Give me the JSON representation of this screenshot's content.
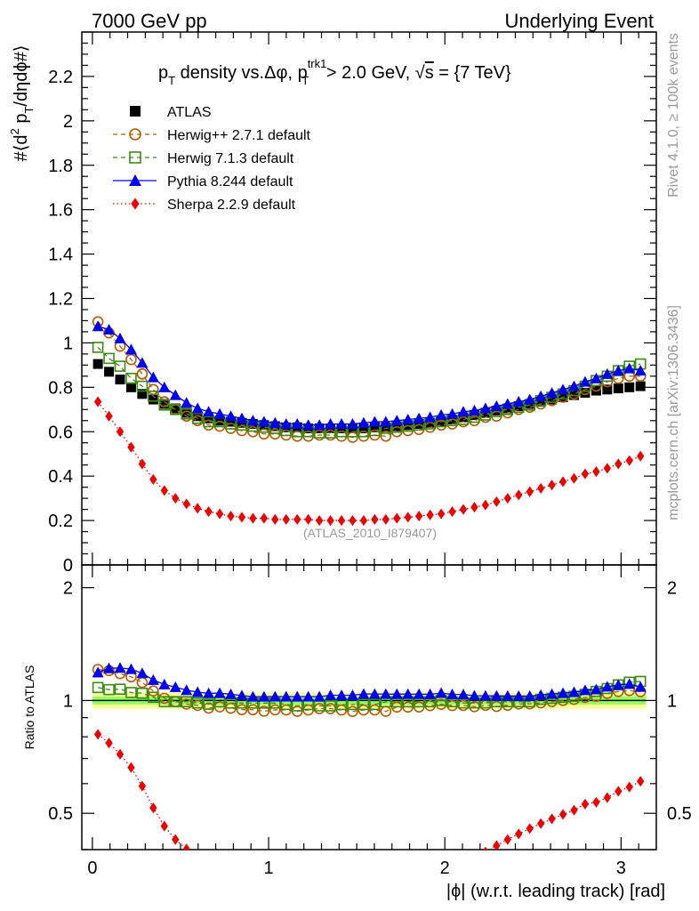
{
  "header": {
    "left": "7000 GeV pp",
    "right": "Underlying Event"
  },
  "side_labels": {
    "rivet": "Rivet 4.1.0, ≥ 100k events",
    "mcplots": "mcplots.cern.ch [arXiv:1306.3436]"
  },
  "chart_data": {
    "type": "scatter",
    "title": "pT density vs.Δφ, pT trk1 > 2.0 GeV, √s = {7 TeV}",
    "title_parts": {
      "p": "p",
      "T": "T",
      "mid": " density vs.Δφ, ",
      "p2": "p",
      "sup": "trk1",
      "sub2": "T",
      "rest": " > 2.0 GeV, ",
      "sqrt": "√",
      "s": "s",
      "end": " = {7 TeV}"
    },
    "ylabel_parts": {
      "a": "#⟨d",
      "b": "2",
      "c": " p",
      "d": "T",
      "e": "/dηdϕ#⟩"
    },
    "ratio_ylabel": "Ratio to ATLAS",
    "xlabel": "|ϕ| (w.r.t. leading track) [rad]",
    "watermark": "(ATLAS_2010_I879407)",
    "xlim": [
      -0.06,
      3.2
    ],
    "ylim": [
      0,
      2.4
    ],
    "ratio_ylim": [
      0.4,
      2.3
    ],
    "x_ticks": [
      "0",
      "1",
      "2",
      "3"
    ],
    "y_ticks": [
      "0",
      "0.2",
      "0.4",
      "0.6",
      "0.8",
      "1",
      "1.2",
      "1.4",
      "1.6",
      "1.8",
      "2",
      "2.2"
    ],
    "ratio_ticks": [
      "0.5",
      "1",
      "2"
    ],
    "legend": [
      "ATLAS",
      "Herwig++ 2.7.1 default",
      "Herwig 7.1.3 default",
      "Pythia 8.244 default",
      "Sherpa 2.2.9 default"
    ],
    "colors": {
      "atlas": "#000000",
      "herwigpp": "#b25b00",
      "herwig7": "#3a8a14",
      "pythia": "#0000ee",
      "sherpa": "#ee0000",
      "band_inner": "#99ff66",
      "band_outer": "#ffff99"
    },
    "x": [
      0.0314,
      0.0942,
      0.1571,
      0.2199,
      0.2827,
      0.3456,
      0.4084,
      0.4712,
      0.5341,
      0.5969,
      0.6597,
      0.7226,
      0.7854,
      0.8482,
      0.9111,
      0.9739,
      1.0367,
      1.0996,
      1.1624,
      1.2252,
      1.2881,
      1.3509,
      1.4137,
      1.4765,
      1.5394,
      1.6022,
      1.665,
      1.7279,
      1.7907,
      1.8535,
      1.9164,
      1.9792,
      2.042,
      2.1049,
      2.1677,
      2.2305,
      2.2934,
      2.3562,
      2.419,
      2.4819,
      2.5447,
      2.6075,
      2.6704,
      2.7332,
      2.796,
      2.8588,
      2.9217,
      2.9845,
      3.0473,
      3.1102
    ],
    "series": [
      {
        "name": "ATLAS",
        "values": [
          0.905,
          0.87,
          0.835,
          0.8,
          0.77,
          0.745,
          0.725,
          0.705,
          0.685,
          0.67,
          0.66,
          0.65,
          0.645,
          0.64,
          0.635,
          0.63,
          0.625,
          0.62,
          0.62,
          0.615,
          0.615,
          0.615,
          0.615,
          0.615,
          0.615,
          0.62,
          0.62,
          0.625,
          0.63,
          0.635,
          0.64,
          0.645,
          0.655,
          0.665,
          0.675,
          0.685,
          0.695,
          0.705,
          0.715,
          0.725,
          0.735,
          0.745,
          0.755,
          0.765,
          0.775,
          0.785,
          0.79,
          0.795,
          0.8,
          0.805
        ]
      },
      {
        "name": "Herwig++ 2.7.1 default",
        "values": [
          1.095,
          1.045,
          0.985,
          0.925,
          0.86,
          0.79,
          0.735,
          0.7,
          0.67,
          0.65,
          0.63,
          0.625,
          0.615,
          0.605,
          0.6,
          0.59,
          0.59,
          0.585,
          0.58,
          0.58,
          0.585,
          0.585,
          0.58,
          0.575,
          0.58,
          0.585,
          0.58,
          0.6,
          0.605,
          0.61,
          0.62,
          0.63,
          0.635,
          0.645,
          0.65,
          0.665,
          0.67,
          0.685,
          0.7,
          0.71,
          0.725,
          0.74,
          0.755,
          0.77,
          0.79,
          0.805,
          0.825,
          0.84,
          0.85,
          0.85
        ]
      },
      {
        "name": "Herwig 7.1.3 default",
        "values": [
          0.98,
          0.93,
          0.895,
          0.84,
          0.805,
          0.76,
          0.72,
          0.7,
          0.68,
          0.66,
          0.645,
          0.645,
          0.635,
          0.63,
          0.625,
          0.62,
          0.615,
          0.605,
          0.6,
          0.6,
          0.595,
          0.595,
          0.6,
          0.6,
          0.6,
          0.605,
          0.615,
          0.62,
          0.625,
          0.63,
          0.635,
          0.645,
          0.65,
          0.655,
          0.665,
          0.675,
          0.69,
          0.7,
          0.71,
          0.72,
          0.74,
          0.755,
          0.77,
          0.785,
          0.805,
          0.83,
          0.85,
          0.875,
          0.895,
          0.905
        ]
      },
      {
        "name": "Pythia 8.244 default",
        "values": [
          1.075,
          1.06,
          1.02,
          0.97,
          0.91,
          0.845,
          0.8,
          0.765,
          0.73,
          0.705,
          0.69,
          0.68,
          0.67,
          0.66,
          0.65,
          0.645,
          0.64,
          0.635,
          0.635,
          0.63,
          0.63,
          0.635,
          0.635,
          0.635,
          0.64,
          0.645,
          0.645,
          0.65,
          0.655,
          0.66,
          0.665,
          0.675,
          0.68,
          0.69,
          0.695,
          0.705,
          0.715,
          0.725,
          0.735,
          0.745,
          0.76,
          0.775,
          0.79,
          0.805,
          0.825,
          0.84,
          0.86,
          0.875,
          0.885,
          0.875
        ]
      },
      {
        "name": "Sherpa 2.2.9 default",
        "values": [
          0.735,
          0.67,
          0.6,
          0.53,
          0.455,
          0.385,
          0.335,
          0.3,
          0.275,
          0.255,
          0.24,
          0.23,
          0.22,
          0.215,
          0.21,
          0.21,
          0.205,
          0.205,
          0.205,
          0.205,
          0.2,
          0.2,
          0.2,
          0.2,
          0.2,
          0.205,
          0.205,
          0.21,
          0.215,
          0.22,
          0.225,
          0.23,
          0.24,
          0.25,
          0.26,
          0.27,
          0.285,
          0.3,
          0.315,
          0.33,
          0.345,
          0.36,
          0.375,
          0.39,
          0.41,
          0.42,
          0.435,
          0.455,
          0.47,
          0.49
        ]
      }
    ]
  }
}
